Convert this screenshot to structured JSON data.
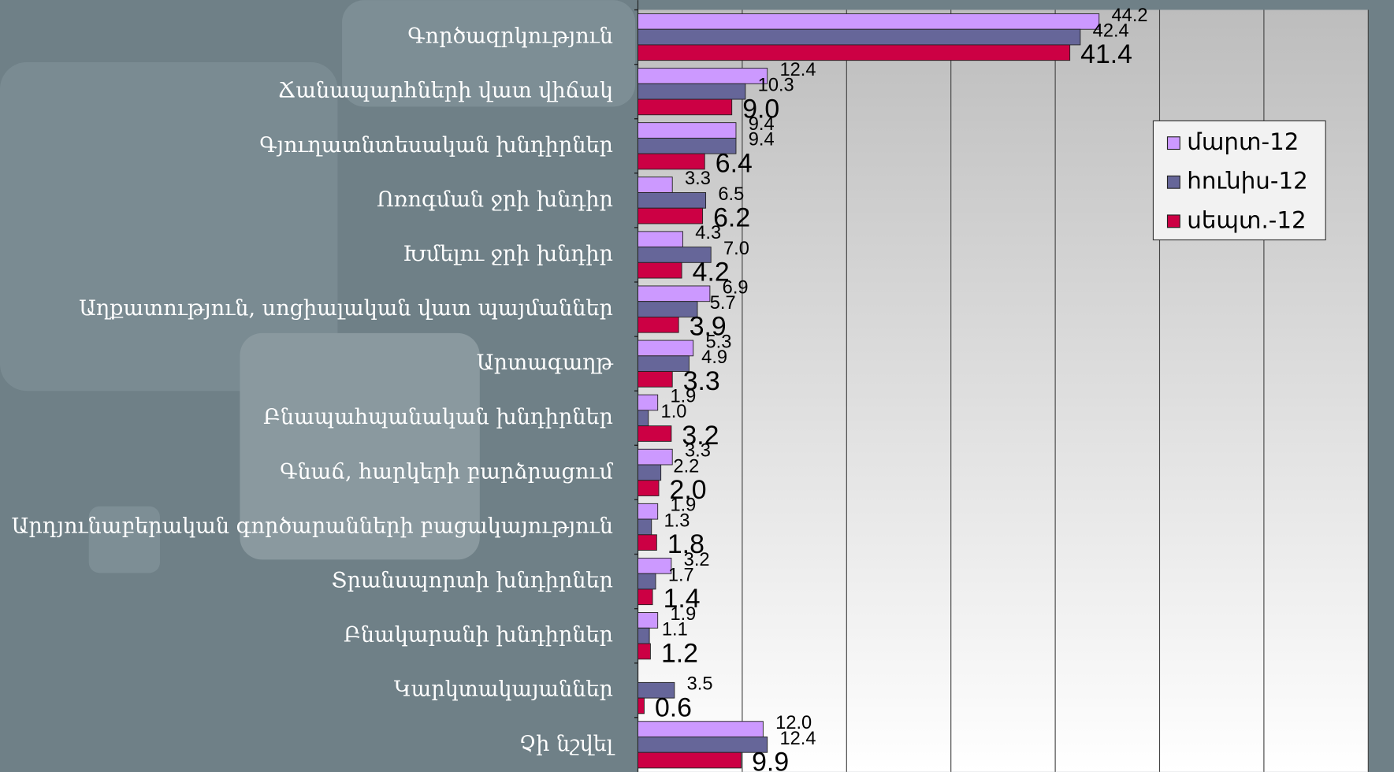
{
  "chart_data": {
    "type": "bar",
    "orientation": "horizontal",
    "categories": [
      "Գործազրկություն",
      "Ճանապարհների վատ վիճակ",
      "Գյուղատնտեսական խնդիրներ",
      "Ոռոգման ջրի խնդիր",
      "Խմելու ջրի խնդիր",
      "Աղքատություն, սոցիալական վատ պայմաններ",
      "Արտագաղթ",
      "Բնապահպանական խնդիրներ",
      "Գնաճ, հարկերի բարձրացում",
      "Արդյունաբերական գործարանների բացակայություն",
      "Տրանսպորտի խնդիրներ",
      "Բնակարանի խնդիրներ",
      "Կարկտակայաններ",
      "Չի նշվել"
    ],
    "series": [
      {
        "name": "մարտ-12",
        "color": "#cc99ff",
        "values": [
          44.2,
          12.4,
          9.4,
          3.3,
          4.3,
          6.9,
          5.3,
          1.9,
          3.3,
          1.9,
          3.2,
          1.9,
          null,
          12.0
        ],
        "value_labels": [
          "44.2",
          "12.4",
          "9.4",
          "3.3",
          "4.3",
          "6.9",
          "5.3",
          "1.9",
          "3.3",
          "1.9",
          "3.2",
          "1.9",
          null,
          "12.0"
        ]
      },
      {
        "name": "հունիս-12",
        "color": "#666699",
        "values": [
          42.4,
          10.3,
          9.4,
          6.5,
          7.0,
          5.7,
          4.9,
          1.0,
          2.2,
          1.3,
          1.7,
          1.1,
          3.5,
          12.4
        ],
        "value_labels": [
          "42.4",
          "10.3",
          "9.4",
          "6.5",
          "7.0",
          "5.7",
          "4.9",
          "1.0",
          "2.2",
          "1.3",
          "1.7",
          "1.1",
          "3.5",
          "12.4"
        ]
      },
      {
        "name": "սեպտ.-12",
        "color": "#cc0044",
        "values": [
          41.4,
          9.0,
          6.4,
          6.2,
          4.2,
          3.9,
          3.3,
          3.2,
          2.0,
          1.8,
          1.4,
          1.2,
          0.6,
          9.9
        ],
        "value_labels": [
          "41.4",
          "9.0",
          "6.4",
          "6.2",
          "4.2",
          "3.9",
          "3.3",
          "3.2",
          "2.0",
          "1.8",
          "1.4",
          "1.2",
          "0.6",
          "9.9"
        ]
      }
    ],
    "xlim": [
      0,
      70
    ],
    "xticks": [
      0,
      10,
      20,
      30,
      40,
      50,
      60,
      70
    ],
    "grid": true,
    "legend": "upper right"
  }
}
